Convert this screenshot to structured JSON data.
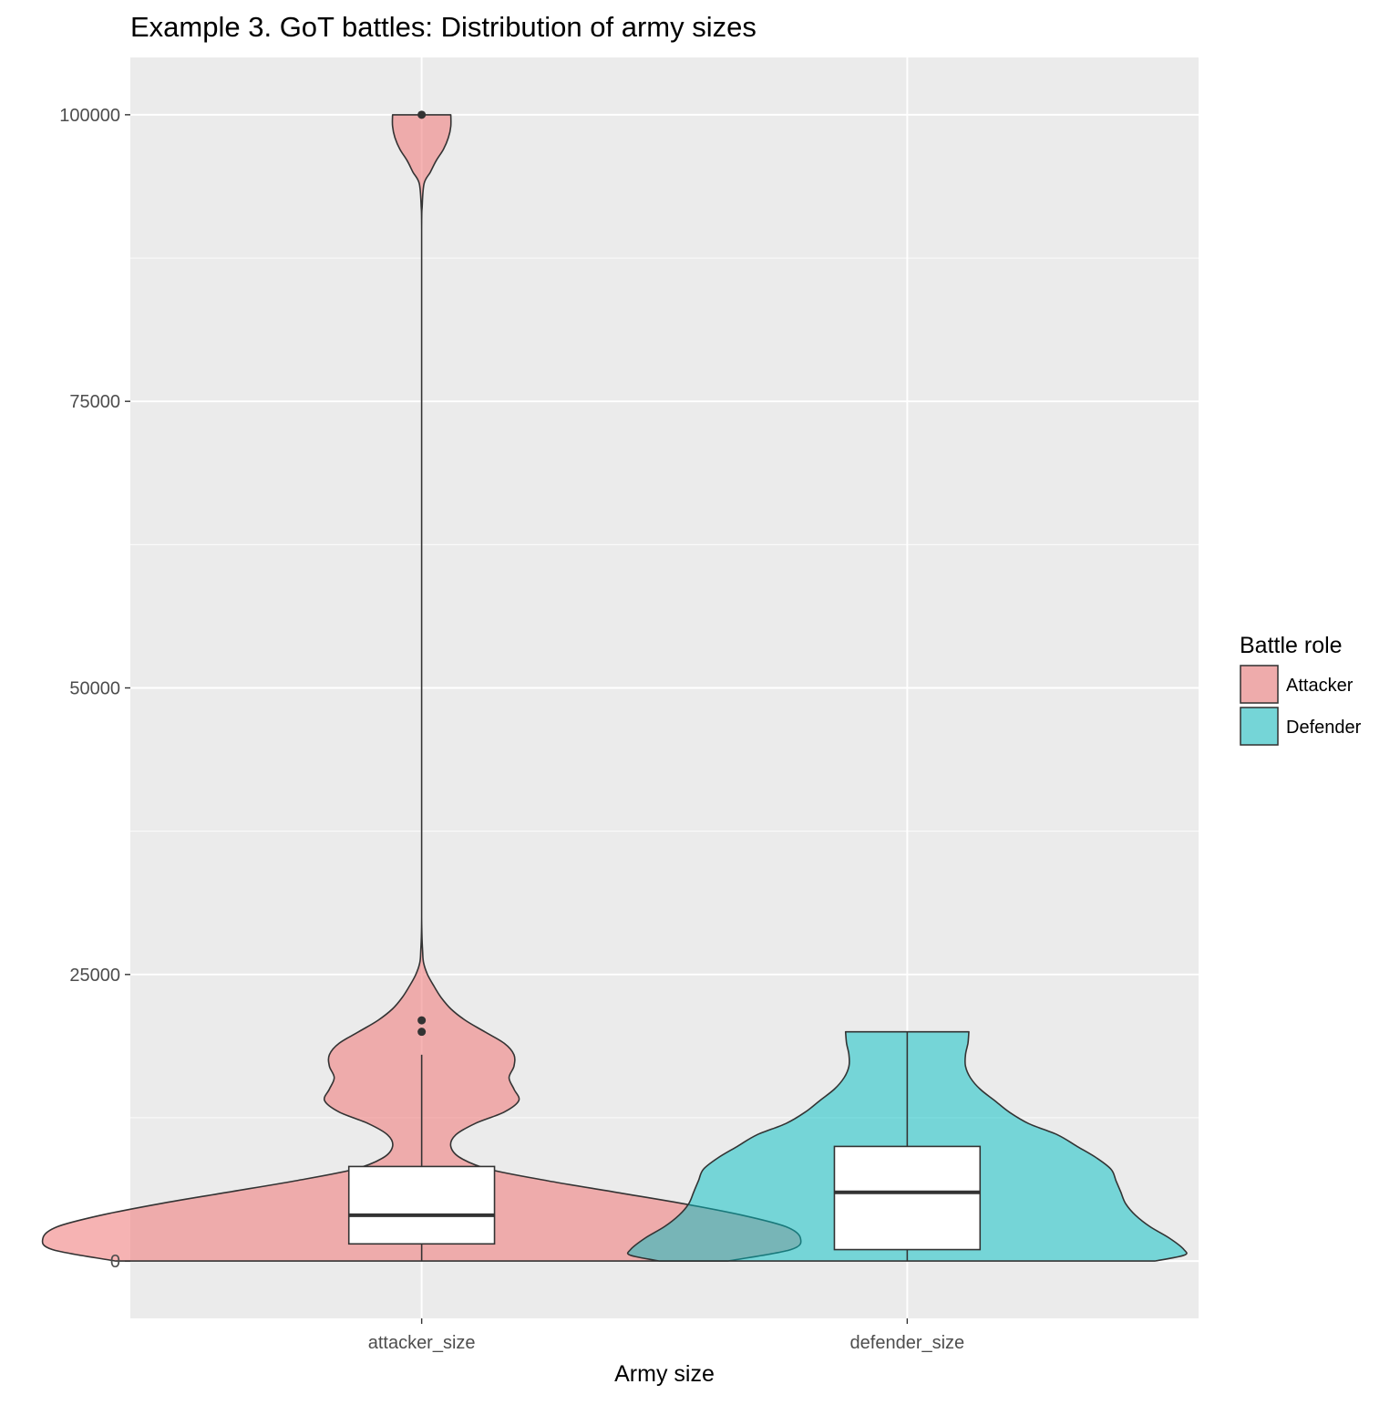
{
  "chart_data": {
    "type": "violin",
    "title": "Example 3. GoT battles: Distribution of army sizes",
    "xlabel": "Army size",
    "ylabel": "",
    "ylim": [
      -5000,
      105000
    ],
    "yticks": [
      0,
      25000,
      50000,
      75000,
      100000
    ],
    "ytick_labels": [
      "0",
      "25000",
      "50000",
      "75000",
      "100000"
    ],
    "categories": [
      "attacker_size",
      "defender_size"
    ],
    "grid": true,
    "legend": {
      "title": "Battle role",
      "position": "right",
      "entries": [
        {
          "label": "Attacker",
          "color": "#f08080"
        },
        {
          "label": "Defender",
          "color": "#00bfc4"
        }
      ]
    },
    "series": [
      {
        "name": "Attacker",
        "category": "attacker_size",
        "color": "#f08080",
        "fill_opacity": 0.6,
        "violin": {
          "y": [
            0,
            1000,
            2000,
            3000,
            4000,
            5000,
            6000,
            7000,
            8000,
            9000,
            10000,
            11000,
            12000,
            13000,
            14000,
            15000,
            16000,
            17000,
            18000,
            19000,
            20000,
            21000,
            22000,
            23000,
            24000,
            25000,
            26000,
            27000,
            30000,
            40000,
            60000,
            80000,
            90000,
            92000,
            94000,
            95000,
            96000,
            97000,
            98000,
            99000,
            100000
          ],
          "half_width": [
            0.63,
            0.76,
            0.78,
            0.75,
            0.66,
            0.54,
            0.4,
            0.26,
            0.14,
            0.08,
            0.06,
            0.07,
            0.11,
            0.17,
            0.2,
            0.19,
            0.18,
            0.19,
            0.19,
            0.17,
            0.13,
            0.09,
            0.06,
            0.04,
            0.025,
            0.012,
            0.004,
            0.002,
            0.0,
            0.0,
            0.0,
            0.0,
            0.0,
            0.001,
            0.005,
            0.018,
            0.03,
            0.045,
            0.055,
            0.06,
            0.06
          ]
        },
        "box": {
          "lower_whisker": 0,
          "q1": 1500,
          "median": 4000,
          "q3": 8250,
          "upper_whisker": 18000
        },
        "outliers": [
          20000,
          21000,
          100000
        ]
      },
      {
        "name": "Defender",
        "category": "defender_size",
        "color": "#00bfc4",
        "fill_opacity": 0.5,
        "violin": {
          "y": [
            0,
            500,
            1000,
            2000,
            3000,
            4000,
            5000,
            6000,
            7000,
            8000,
            9000,
            10000,
            11000,
            12000,
            13000,
            14000,
            15000,
            16000,
            17000,
            18000,
            19000,
            20000
          ],
          "half_width": [
            0.51,
            0.57,
            0.57,
            0.54,
            0.5,
            0.47,
            0.45,
            0.44,
            0.43,
            0.42,
            0.39,
            0.35,
            0.31,
            0.25,
            0.21,
            0.18,
            0.15,
            0.13,
            0.12,
            0.12,
            0.125,
            0.127
          ]
        },
        "box": {
          "lower_whisker": 0,
          "q1": 1000,
          "median": 6000,
          "q3": 10000,
          "upper_whisker": 20000
        },
        "outliers": []
      }
    ]
  }
}
